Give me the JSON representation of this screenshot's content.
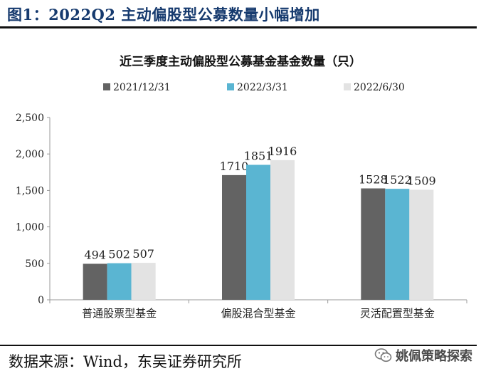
{
  "figure": {
    "title": "图1：2022Q2 主动偏股型公募数量小幅增加",
    "source": "数据来源：Wind，东吴证券研究所",
    "watermark": "姚佩策略探索",
    "watermark_icon": "wechat-icon"
  },
  "chart_data": {
    "type": "bar",
    "title": "近三季度主动偏股型公募基金基金数量（只）",
    "categories": [
      "普通股票型基金",
      "偏股混合型基金",
      "灵活配置型基金"
    ],
    "series": [
      {
        "name": "2021/12/31",
        "values": [
          494,
          1710,
          1528
        ],
        "color": "#636363"
      },
      {
        "name": "2022/3/31",
        "values": [
          502,
          1851,
          1522
        ],
        "color": "#5ab5d2"
      },
      {
        "name": "2022/6/30",
        "values": [
          507,
          1916,
          1509
        ],
        "color": "#e3e3e3"
      }
    ],
    "yticks": [
      "0",
      "500",
      "1,000",
      "1,500",
      "2,000",
      "2,500"
    ],
    "ylim": [
      0,
      2500
    ],
    "legend": "top",
    "grid": false,
    "xlabel": "",
    "ylabel": ""
  }
}
